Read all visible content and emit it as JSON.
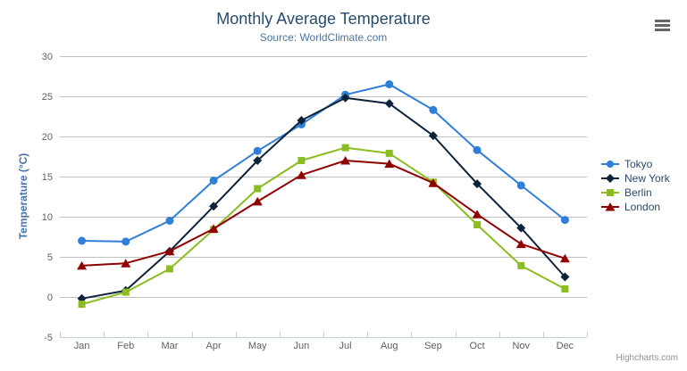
{
  "credits": "Highcharts.com",
  "colors": {
    "title": "#274b6d",
    "subtitle": "#4d759e",
    "axis_label": "#606060",
    "axis_title": "#4572a7",
    "grid": "#c0c0c0",
    "axis_line": "#c0d0e0",
    "legend_text": "#274b6d",
    "credits_text": "#909090",
    "menu_icon": "#666666"
  },
  "chart_data": {
    "type": "line",
    "title": "Monthly Average Temperature",
    "subtitle": "Source: WorldClimate.com",
    "categories": [
      "Jan",
      "Feb",
      "Mar",
      "Apr",
      "May",
      "Jun",
      "Jul",
      "Aug",
      "Sep",
      "Oct",
      "Nov",
      "Dec"
    ],
    "series": [
      {
        "name": "Tokyo",
        "color": "#2f7ed8",
        "marker": "circle",
        "values": [
          7.0,
          6.9,
          9.5,
          14.5,
          18.2,
          21.5,
          25.2,
          26.5,
          23.3,
          18.3,
          13.9,
          9.6
        ]
      },
      {
        "name": "New York",
        "color": "#0d233a",
        "marker": "diamond",
        "values": [
          -0.2,
          0.8,
          5.7,
          11.3,
          17.0,
          22.0,
          24.8,
          24.1,
          20.1,
          14.1,
          8.6,
          2.5
        ]
      },
      {
        "name": "Berlin",
        "color": "#8bbc21",
        "marker": "square",
        "values": [
          -0.9,
          0.6,
          3.5,
          8.4,
          13.5,
          17.0,
          18.6,
          17.9,
          14.3,
          9.0,
          3.9,
          1.0
        ]
      },
      {
        "name": "London",
        "color": "#910000",
        "marker": "triangle",
        "values": [
          3.9,
          4.2,
          5.7,
          8.5,
          11.9,
          15.2,
          17.0,
          16.6,
          14.2,
          10.3,
          6.6,
          4.8
        ]
      }
    ],
    "xlabel": "",
    "ylabel": "Temperature (°C)",
    "ylim": [
      -5,
      30
    ],
    "yticks": [
      -5,
      0,
      5,
      10,
      15,
      20,
      25,
      30
    ],
    "grid": true,
    "legend_position": "right"
  }
}
